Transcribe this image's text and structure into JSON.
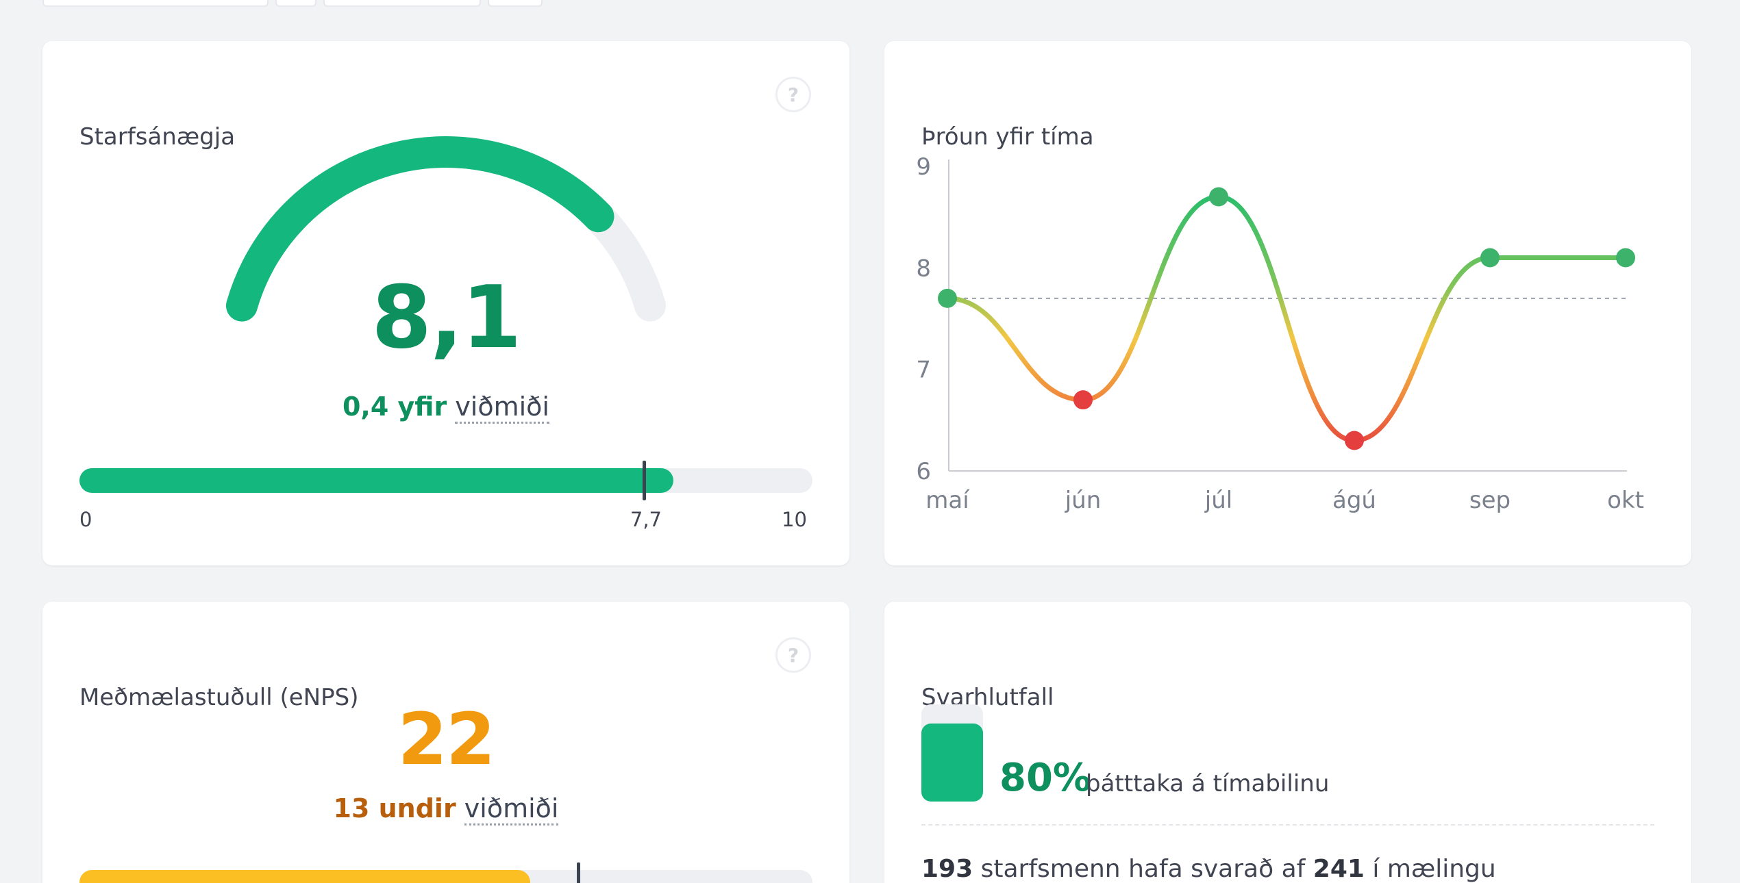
{
  "colors": {
    "green": "#14b87f",
    "green_text": "#0e8f5e",
    "orange": "#f29a0f",
    "orange_text": "#b85f0d",
    "yellow": "#fbbf24",
    "red": "#e53e3e",
    "track": "#eeeff2"
  },
  "satisfaction": {
    "title": "Starfsánægja",
    "help_icon": "question-circle-icon",
    "help_glyph": "?",
    "value": "8,1",
    "score": 8.1,
    "gauge_max": 10,
    "delta": "0,4 yfir",
    "benchmark_label": "viðmiði",
    "benchmark": 7.7,
    "scale_min": "0",
    "scale_benchmark": "7,7",
    "scale_max": "10"
  },
  "trend": {
    "title": "Þróun yfir tíma"
  },
  "chart_data": {
    "type": "line",
    "categories": [
      "maí",
      "jún",
      "júl",
      "ágú",
      "sep",
      "okt"
    ],
    "series": [
      {
        "values": [
          7.7,
          6.7,
          8.7,
          6.3,
          8.1,
          8.1
        ]
      }
    ],
    "reference_line": 7.7,
    "ylim": [
      6,
      9
    ],
    "yticks": [
      "6",
      "7",
      "8",
      "9"
    ],
    "grid": false,
    "color_scale": "green above benchmark, yellow near, red below"
  },
  "enps": {
    "title": "Meðmælastuðull (eNPS)",
    "help_icon": "question-circle-icon",
    "help_glyph": "?",
    "value": "22",
    "delta": "13 undir",
    "benchmark_label": "viðmiði",
    "bar_fraction": 0.615,
    "benchmark_fraction": 0.68
  },
  "response": {
    "title": "Svarhlutfall",
    "percent": "80%",
    "fraction": 0.8,
    "text": "þátttaka á tímabilinu",
    "count_answered": "193",
    "summary_middle": "starfsmenn hafa svarað af",
    "count_total": "241",
    "summary_end": "í mælingu"
  }
}
